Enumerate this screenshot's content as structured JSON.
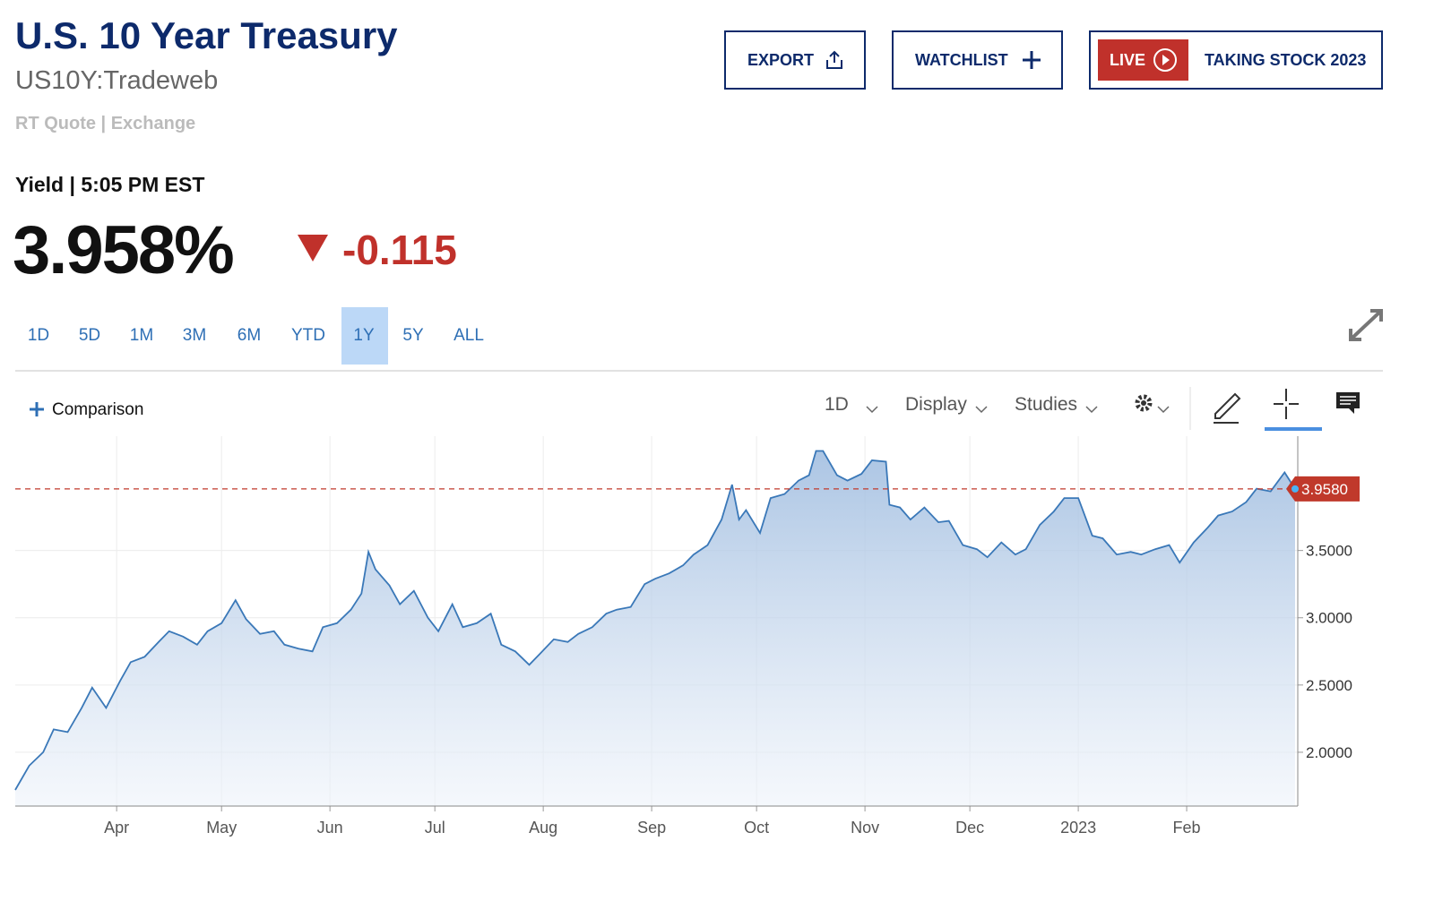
{
  "header": {
    "title": "U.S. 10 Year Treasury",
    "symbol": "US10Y:Tradeweb",
    "quote_info": "RT Quote | Exchange",
    "buttons": {
      "export": "EXPORT",
      "watchlist": "WATCHLIST",
      "live": "LIVE",
      "taking_stock": "TAKING STOCK 2023"
    }
  },
  "quote": {
    "label": "Yield | 5:05 PM EST",
    "price": "3.958%",
    "change": "-0.115"
  },
  "range_tabs": [
    "1D",
    "5D",
    "1M",
    "3M",
    "6M",
    "YTD",
    "1Y",
    "5Y",
    "ALL"
  ],
  "toolbar": {
    "comparison": "Comparison",
    "interval": "1D",
    "display": "Display",
    "studies": "Studies"
  },
  "chart_data": {
    "type": "area",
    "color": "#3a78b8",
    "grid": true,
    "x": [
      2,
      6,
      10,
      13,
      17,
      21,
      24,
      28,
      32,
      35,
      39,
      43,
      46,
      50,
      54,
      57,
      61,
      65,
      68,
      72,
      76,
      79,
      83,
      87,
      90,
      94,
      98,
      101,
      103,
      105,
      109,
      112,
      116,
      120,
      123,
      127,
      130,
      134,
      138,
      141,
      145,
      149,
      152,
      156,
      160,
      163,
      167,
      171,
      174,
      178,
      182,
      185,
      189,
      193,
      196,
      200,
      204,
      207,
      209,
      211,
      215,
      218,
      222,
      226,
      229,
      231,
      233,
      237,
      240,
      244,
      247,
      251,
      252,
      255,
      258,
      262,
      266,
      269,
      273,
      277,
      280,
      284,
      288,
      291,
      295,
      299,
      302,
      306,
      310,
      313,
      317,
      321,
      324,
      328,
      332,
      335,
      339,
      343,
      346,
      350,
      354,
      357,
      361,
      365,
      368
    ],
    "values": [
      1.72,
      1.9,
      2.0,
      2.17,
      2.15,
      2.33,
      2.48,
      2.33,
      2.53,
      2.67,
      2.71,
      2.82,
      2.9,
      2.86,
      2.8,
      2.9,
      2.96,
      3.13,
      2.99,
      2.88,
      2.9,
      2.8,
      2.77,
      2.75,
      2.93,
      2.96,
      3.06,
      3.18,
      3.49,
      3.36,
      3.24,
      3.1,
      3.2,
      3.0,
      2.9,
      3.1,
      2.93,
      2.96,
      3.03,
      2.8,
      2.75,
      2.65,
      2.73,
      2.84,
      2.82,
      2.88,
      2.93,
      3.03,
      3.06,
      3.08,
      3.25,
      3.29,
      3.33,
      3.39,
      3.47,
      3.54,
      3.73,
      3.99,
      3.73,
      3.8,
      3.63,
      3.89,
      3.92,
      4.02,
      4.06,
      4.24,
      4.24,
      4.06,
      4.02,
      4.07,
      4.17,
      4.16,
      3.84,
      3.82,
      3.73,
      3.82,
      3.71,
      3.72,
      3.54,
      3.51,
      3.45,
      3.56,
      3.47,
      3.51,
      3.69,
      3.79,
      3.89,
      3.89,
      3.61,
      3.59,
      3.47,
      3.49,
      3.47,
      3.51,
      3.54,
      3.41,
      3.56,
      3.67,
      3.76,
      3.79,
      3.86,
      3.96,
      3.94,
      4.08,
      3.958
    ],
    "xlim": [
      2,
      368
    ],
    "xticks": [
      {
        "value": 31,
        "label": "Apr"
      },
      {
        "value": 61,
        "label": "May"
      },
      {
        "value": 92,
        "label": "Jun"
      },
      {
        "value": 122,
        "label": "Jul"
      },
      {
        "value": 153,
        "label": "Aug"
      },
      {
        "value": 184,
        "label": "Sep"
      },
      {
        "value": 214,
        "label": "Oct"
      },
      {
        "value": 245,
        "label": "Nov"
      },
      {
        "value": 275,
        "label": "Dec"
      },
      {
        "value": 306,
        "label": "2023"
      },
      {
        "value": 337,
        "label": "Feb"
      }
    ],
    "ylim": [
      1.6,
      4.35
    ],
    "yticks": [
      {
        "value": 2,
        "label": "2.0000"
      },
      {
        "value": 2.5,
        "label": "2.5000"
      },
      {
        "value": 3,
        "label": "3.0000"
      },
      {
        "value": 3.5,
        "label": "3.5000"
      }
    ],
    "reference_line": {
      "value": 3.958,
      "label": "3.9580",
      "color": "#c0392b"
    }
  }
}
